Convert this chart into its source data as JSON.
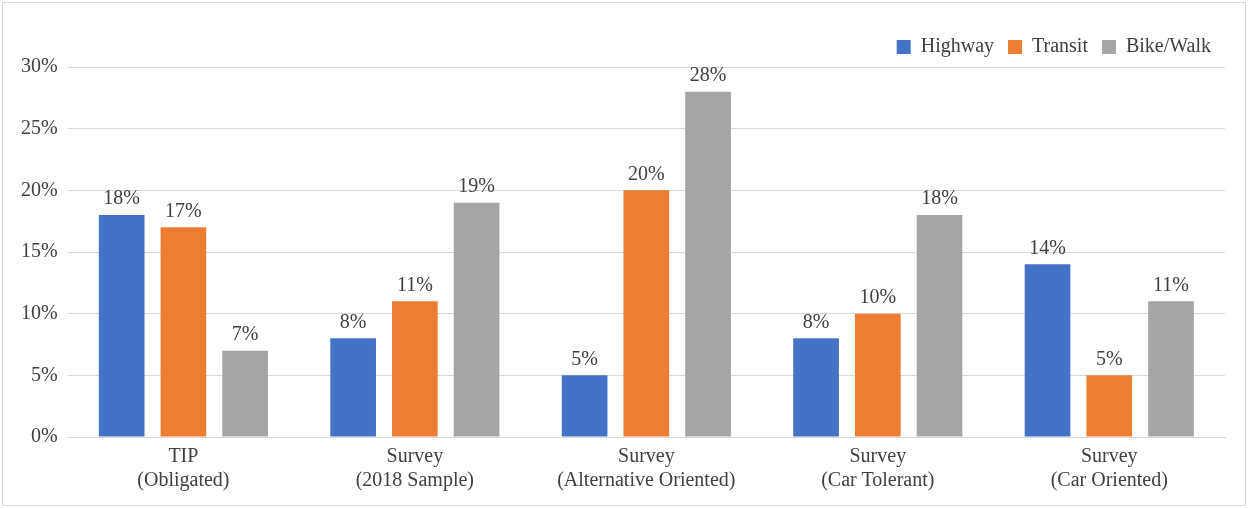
{
  "chart_data": {
    "type": "bar",
    "categories": [
      "TIP\n(Obligated)",
      "Survey\n(2018 Sample)",
      "Survey\n(Alternative Oriented)",
      "Survey\n(Car Tolerant)",
      "Survey\n(Car Oriented)"
    ],
    "series": [
      {
        "name": "Highway",
        "color": "#4472c4",
        "values": [
          18,
          8,
          5,
          8,
          14
        ],
        "value_labels": [
          "18%",
          "8%",
          "5%",
          "8%",
          "14%"
        ]
      },
      {
        "name": "Transit",
        "color": "#ed7d31",
        "values": [
          17,
          11,
          20,
          10,
          5
        ],
        "value_labels": [
          "17%",
          "11%",
          "20%",
          "10%",
          "5%"
        ]
      },
      {
        "name": "Bike/Walk",
        "color": "#a5a5a5",
        "values": [
          7,
          19,
          28,
          18,
          11
        ],
        "value_labels": [
          "7%",
          "19%",
          "28%",
          "18%",
          "11%"
        ]
      }
    ],
    "ylim": [
      0,
      30
    ],
    "yticks": [
      {
        "value": 0,
        "label": "0%"
      },
      {
        "value": 5,
        "label": "5%"
      },
      {
        "value": 10,
        "label": "10%"
      },
      {
        "value": 15,
        "label": "15%"
      },
      {
        "value": 20,
        "label": "20%"
      },
      {
        "value": 25,
        "label": "25%"
      },
      {
        "value": 30,
        "label": "30%"
      }
    ],
    "grid": "y",
    "legend": "top right"
  }
}
